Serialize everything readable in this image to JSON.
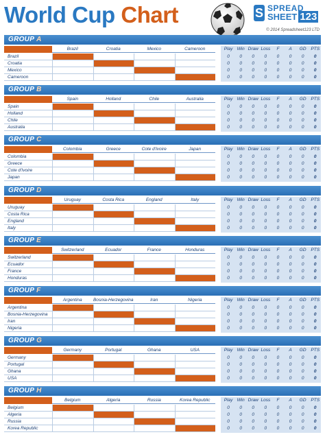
{
  "header": {
    "title_part1": "World Cup",
    "title_part2": "Chart",
    "logo_top": "SPREAD",
    "logo_bottom": "SHEET",
    "logo_number": "123",
    "logo_mark": "S",
    "copyright": "© 2014 Spreadsheet123 LTD"
  },
  "stat_headers": [
    "Play",
    "Win",
    "Draw",
    "Loss",
    "F",
    "A",
    "GD",
    "PTS"
  ],
  "colors": {
    "accent_blue": "#2a79c2",
    "accent_orange": "#d35f1b",
    "stats_bg": "#d6e3f2"
  },
  "groups": [
    {
      "label": "GROUP",
      "letter": "A",
      "teams": [
        "Brazil",
        "Croatia",
        "Mexico",
        "Cameroon"
      ],
      "stats": [
        [
          "0",
          "0",
          "0",
          "0",
          "0",
          "0",
          "0",
          "0"
        ],
        [
          "0",
          "0",
          "0",
          "0",
          "0",
          "0",
          "0",
          "0"
        ],
        [
          "0",
          "0",
          "0",
          "0",
          "0",
          "0",
          "0",
          "0"
        ],
        [
          "0",
          "0",
          "0",
          "0",
          "0",
          "0",
          "0",
          "0"
        ]
      ]
    },
    {
      "label": "GROUP",
      "letter": "B",
      "teams": [
        "Spain",
        "Holland",
        "Chile",
        "Australia"
      ],
      "stats": [
        [
          "0",
          "0",
          "0",
          "0",
          "0",
          "0",
          "0",
          "0"
        ],
        [
          "0",
          "0",
          "0",
          "0",
          "0",
          "0",
          "0",
          "0"
        ],
        [
          "0",
          "0",
          "0",
          "0",
          "0",
          "0",
          "0",
          "0"
        ],
        [
          "0",
          "0",
          "0",
          "0",
          "0",
          "0",
          "0",
          "0"
        ]
      ]
    },
    {
      "label": "GROUP",
      "letter": "C",
      "teams": [
        "Colombia",
        "Greece",
        "Cote d'Ivoire",
        "Japan"
      ],
      "stats": [
        [
          "0",
          "0",
          "0",
          "0",
          "0",
          "0",
          "0",
          "0"
        ],
        [
          "0",
          "0",
          "0",
          "0",
          "0",
          "0",
          "0",
          "0"
        ],
        [
          "0",
          "0",
          "0",
          "0",
          "0",
          "0",
          "0",
          "0"
        ],
        [
          "0",
          "0",
          "0",
          "0",
          "0",
          "0",
          "0",
          "0"
        ]
      ]
    },
    {
      "label": "GROUP",
      "letter": "D",
      "teams": [
        "Uruguay",
        "Costa Rica",
        "England",
        "Italy"
      ],
      "stats": [
        [
          "0",
          "0",
          "0",
          "0",
          "0",
          "0",
          "0",
          "0"
        ],
        [
          "0",
          "0",
          "0",
          "0",
          "0",
          "0",
          "0",
          "0"
        ],
        [
          "0",
          "0",
          "0",
          "0",
          "0",
          "0",
          "0",
          "0"
        ],
        [
          "0",
          "0",
          "0",
          "0",
          "0",
          "0",
          "0",
          "0"
        ]
      ]
    },
    {
      "label": "GROUP",
      "letter": "E",
      "teams": [
        "Switzerland",
        "Ecuador",
        "France",
        "Honduras"
      ],
      "stats": [
        [
          "0",
          "0",
          "0",
          "0",
          "0",
          "0",
          "0",
          "0"
        ],
        [
          "0",
          "0",
          "0",
          "0",
          "0",
          "0",
          "0",
          "0"
        ],
        [
          "0",
          "0",
          "0",
          "0",
          "0",
          "0",
          "0",
          "0"
        ],
        [
          "0",
          "0",
          "0",
          "0",
          "0",
          "0",
          "0",
          "0"
        ]
      ]
    },
    {
      "label": "GROUP",
      "letter": "F",
      "teams": [
        "Argentina",
        "Bosnia-Herzegovina",
        "Iran",
        "Nigeria"
      ],
      "stats": [
        [
          "0",
          "0",
          "0",
          "0",
          "0",
          "0",
          "0",
          "0"
        ],
        [
          "0",
          "0",
          "0",
          "0",
          "0",
          "0",
          "0",
          "0"
        ],
        [
          "0",
          "0",
          "0",
          "0",
          "0",
          "0",
          "0",
          "0"
        ],
        [
          "0",
          "0",
          "0",
          "0",
          "0",
          "0",
          "0",
          "0"
        ]
      ]
    },
    {
      "label": "GROUP",
      "letter": "G",
      "teams": [
        "Germany",
        "Portugal",
        "Ghana",
        "USA"
      ],
      "stats": [
        [
          "0",
          "0",
          "0",
          "0",
          "0",
          "0",
          "0",
          "0"
        ],
        [
          "0",
          "0",
          "0",
          "0",
          "0",
          "0",
          "0",
          "0"
        ],
        [
          "0",
          "0",
          "0",
          "0",
          "0",
          "0",
          "0",
          "0"
        ],
        [
          "0",
          "0",
          "0",
          "0",
          "0",
          "0",
          "0",
          "0"
        ]
      ]
    },
    {
      "label": "GROUP",
      "letter": "H",
      "teams": [
        "Belgium",
        "Algeria",
        "Russia",
        "Korea Republic"
      ],
      "stats": [
        [
          "0",
          "0",
          "0",
          "0",
          "0",
          "0",
          "0",
          "0"
        ],
        [
          "0",
          "0",
          "0",
          "0",
          "0",
          "0",
          "0",
          "0"
        ],
        [
          "0",
          "0",
          "0",
          "0",
          "0",
          "0",
          "0",
          "0"
        ],
        [
          "0",
          "0",
          "0",
          "0",
          "0",
          "0",
          "0",
          "0"
        ]
      ]
    }
  ]
}
